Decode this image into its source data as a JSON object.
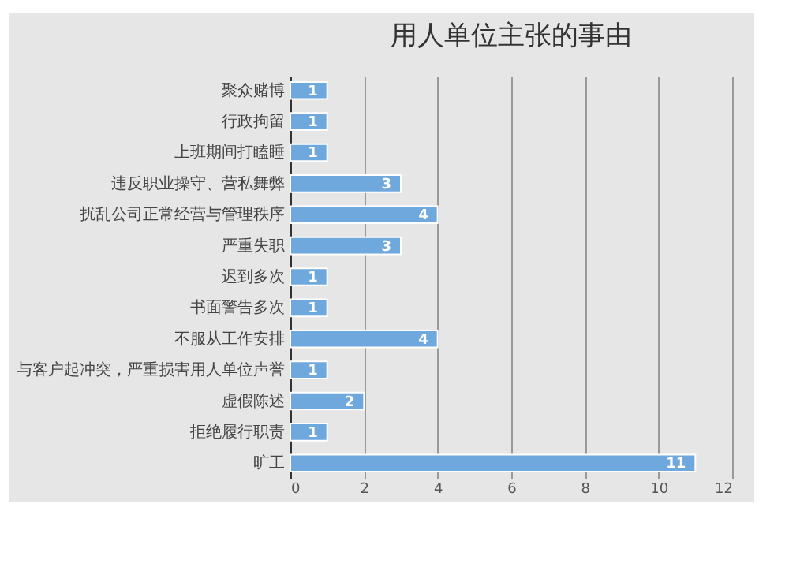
{
  "chart_data": {
    "type": "bar",
    "orientation": "horizontal",
    "title": "用人单位主张的事由",
    "categories": [
      "聚众赌博",
      "行政拘留",
      "上班期间打瞌睡",
      "违反职业操守、营私舞弊",
      "扰乱公司正常经营与管理秩序",
      "严重失职",
      "迟到多次",
      "书面警告多次",
      "不服从工作安排",
      "与客户起冲突，严重损害用人单位声誉",
      "虚假陈述",
      "拒绝履行职责",
      "旷工"
    ],
    "values": [
      1,
      1,
      1,
      3,
      4,
      3,
      1,
      1,
      4,
      1,
      2,
      1,
      11
    ],
    "color": "#6fa8dc",
    "xlim": [
      0,
      12
    ],
    "xticks": [
      0,
      2,
      4,
      6,
      8,
      10,
      12
    ],
    "grid": "x",
    "data_labels": true
  }
}
